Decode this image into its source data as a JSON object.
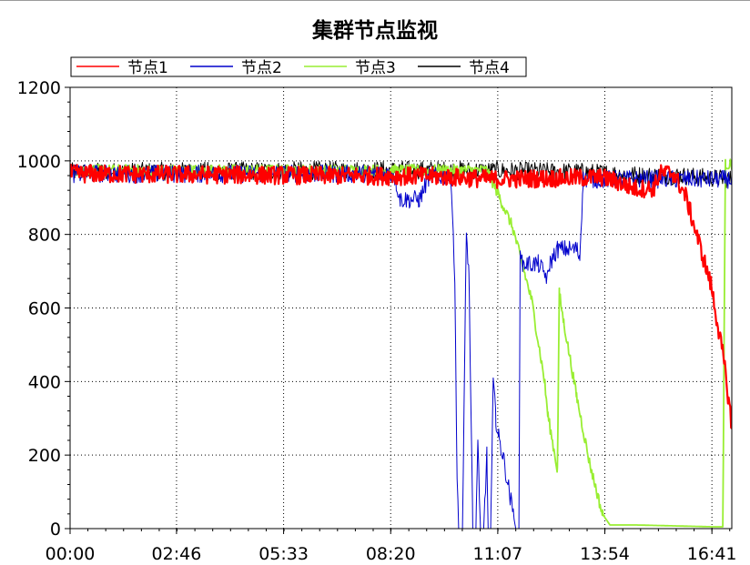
{
  "window": {
    "title": ""
  },
  "chart_data": {
    "type": "line",
    "title": "集群节点监视",
    "xlabel": "",
    "ylabel": "",
    "xlim_minutes": [
      0,
      1032
    ],
    "ylim": [
      0,
      1200
    ],
    "yticks": [
      0,
      200,
      400,
      600,
      800,
      1000,
      1200
    ],
    "xticks": [
      {
        "label": "00:00",
        "minutes": 0
      },
      {
        "label": "02:46",
        "minutes": 166
      },
      {
        "label": "05:33",
        "minutes": 333
      },
      {
        "label": "08:20",
        "minutes": 500
      },
      {
        "label": "11:07",
        "minutes": 667
      },
      {
        "label": "13:54",
        "minutes": 834
      },
      {
        "label": "16:41",
        "minutes": 1001
      }
    ],
    "grid": true,
    "legend_position": "top-left",
    "series": [
      {
        "name": "节点1",
        "color": "#ff0000",
        "noise": 25,
        "points": [
          [
            0,
            965
          ],
          [
            565,
            958
          ],
          [
            660,
            950
          ],
          [
            830,
            955
          ],
          [
            850,
            945
          ],
          [
            880,
            925
          ],
          [
            910,
            925
          ],
          [
            920,
            965
          ],
          [
            940,
            968
          ],
          [
            960,
            905
          ],
          [
            1000,
            660
          ],
          [
            1020,
            450
          ],
          [
            1032,
            280
          ]
        ]
      },
      {
        "name": "节点2",
        "color": "#0000cc",
        "noise": 25,
        "points": [
          [
            0,
            965
          ],
          [
            505,
            965
          ],
          [
            515,
            895
          ],
          [
            545,
            895
          ],
          [
            560,
            958
          ],
          [
            590,
            958
          ],
          [
            595,
            930
          ],
          [
            600,
            680
          ],
          [
            603,
            200
          ],
          [
            606,
            0
          ],
          [
            612,
            0
          ],
          [
            618,
            800
          ],
          [
            622,
            700
          ],
          [
            628,
            0
          ],
          [
            633,
            0
          ],
          [
            636,
            230
          ],
          [
            640,
            0
          ],
          [
            645,
            0
          ],
          [
            650,
            200
          ],
          [
            652,
            0
          ],
          [
            656,
            0
          ],
          [
            660,
            400
          ],
          [
            664,
            300
          ],
          [
            668,
            250
          ],
          [
            675,
            200
          ],
          [
            685,
            100
          ],
          [
            695,
            0
          ],
          [
            700,
            0
          ],
          [
            702,
            780
          ],
          [
            705,
            720
          ],
          [
            730,
            720
          ],
          [
            745,
            680
          ],
          [
            748,
            720
          ],
          [
            760,
            760
          ],
          [
            790,
            760
          ],
          [
            795,
            740
          ],
          [
            800,
            950
          ],
          [
            820,
            950
          ],
          [
            1032,
            950
          ]
        ]
      },
      {
        "name": "节点3",
        "color": "#99ee33",
        "noise": 15,
        "points": [
          [
            0,
            975
          ],
          [
            650,
            975
          ],
          [
            670,
            900
          ],
          [
            690,
            820
          ],
          [
            720,
            620
          ],
          [
            740,
            400
          ],
          [
            745,
            310
          ],
          [
            760,
            160
          ],
          [
            763,
            640
          ],
          [
            770,
            560
          ],
          [
            790,
            360
          ],
          [
            810,
            180
          ],
          [
            830,
            40
          ],
          [
            842,
            10
          ],
          [
            880,
            10
          ],
          [
            1000,
            5
          ],
          [
            1018,
            5
          ],
          [
            1022,
            990
          ],
          [
            1032,
            990
          ]
        ]
      },
      {
        "name": "节点4",
        "color": "#000000",
        "noise": 25,
        "points": [
          [
            0,
            970
          ],
          [
            480,
            975
          ],
          [
            600,
            975
          ],
          [
            800,
            970
          ],
          [
            900,
            960
          ],
          [
            950,
            960
          ],
          [
            1032,
            950
          ]
        ]
      }
    ]
  }
}
